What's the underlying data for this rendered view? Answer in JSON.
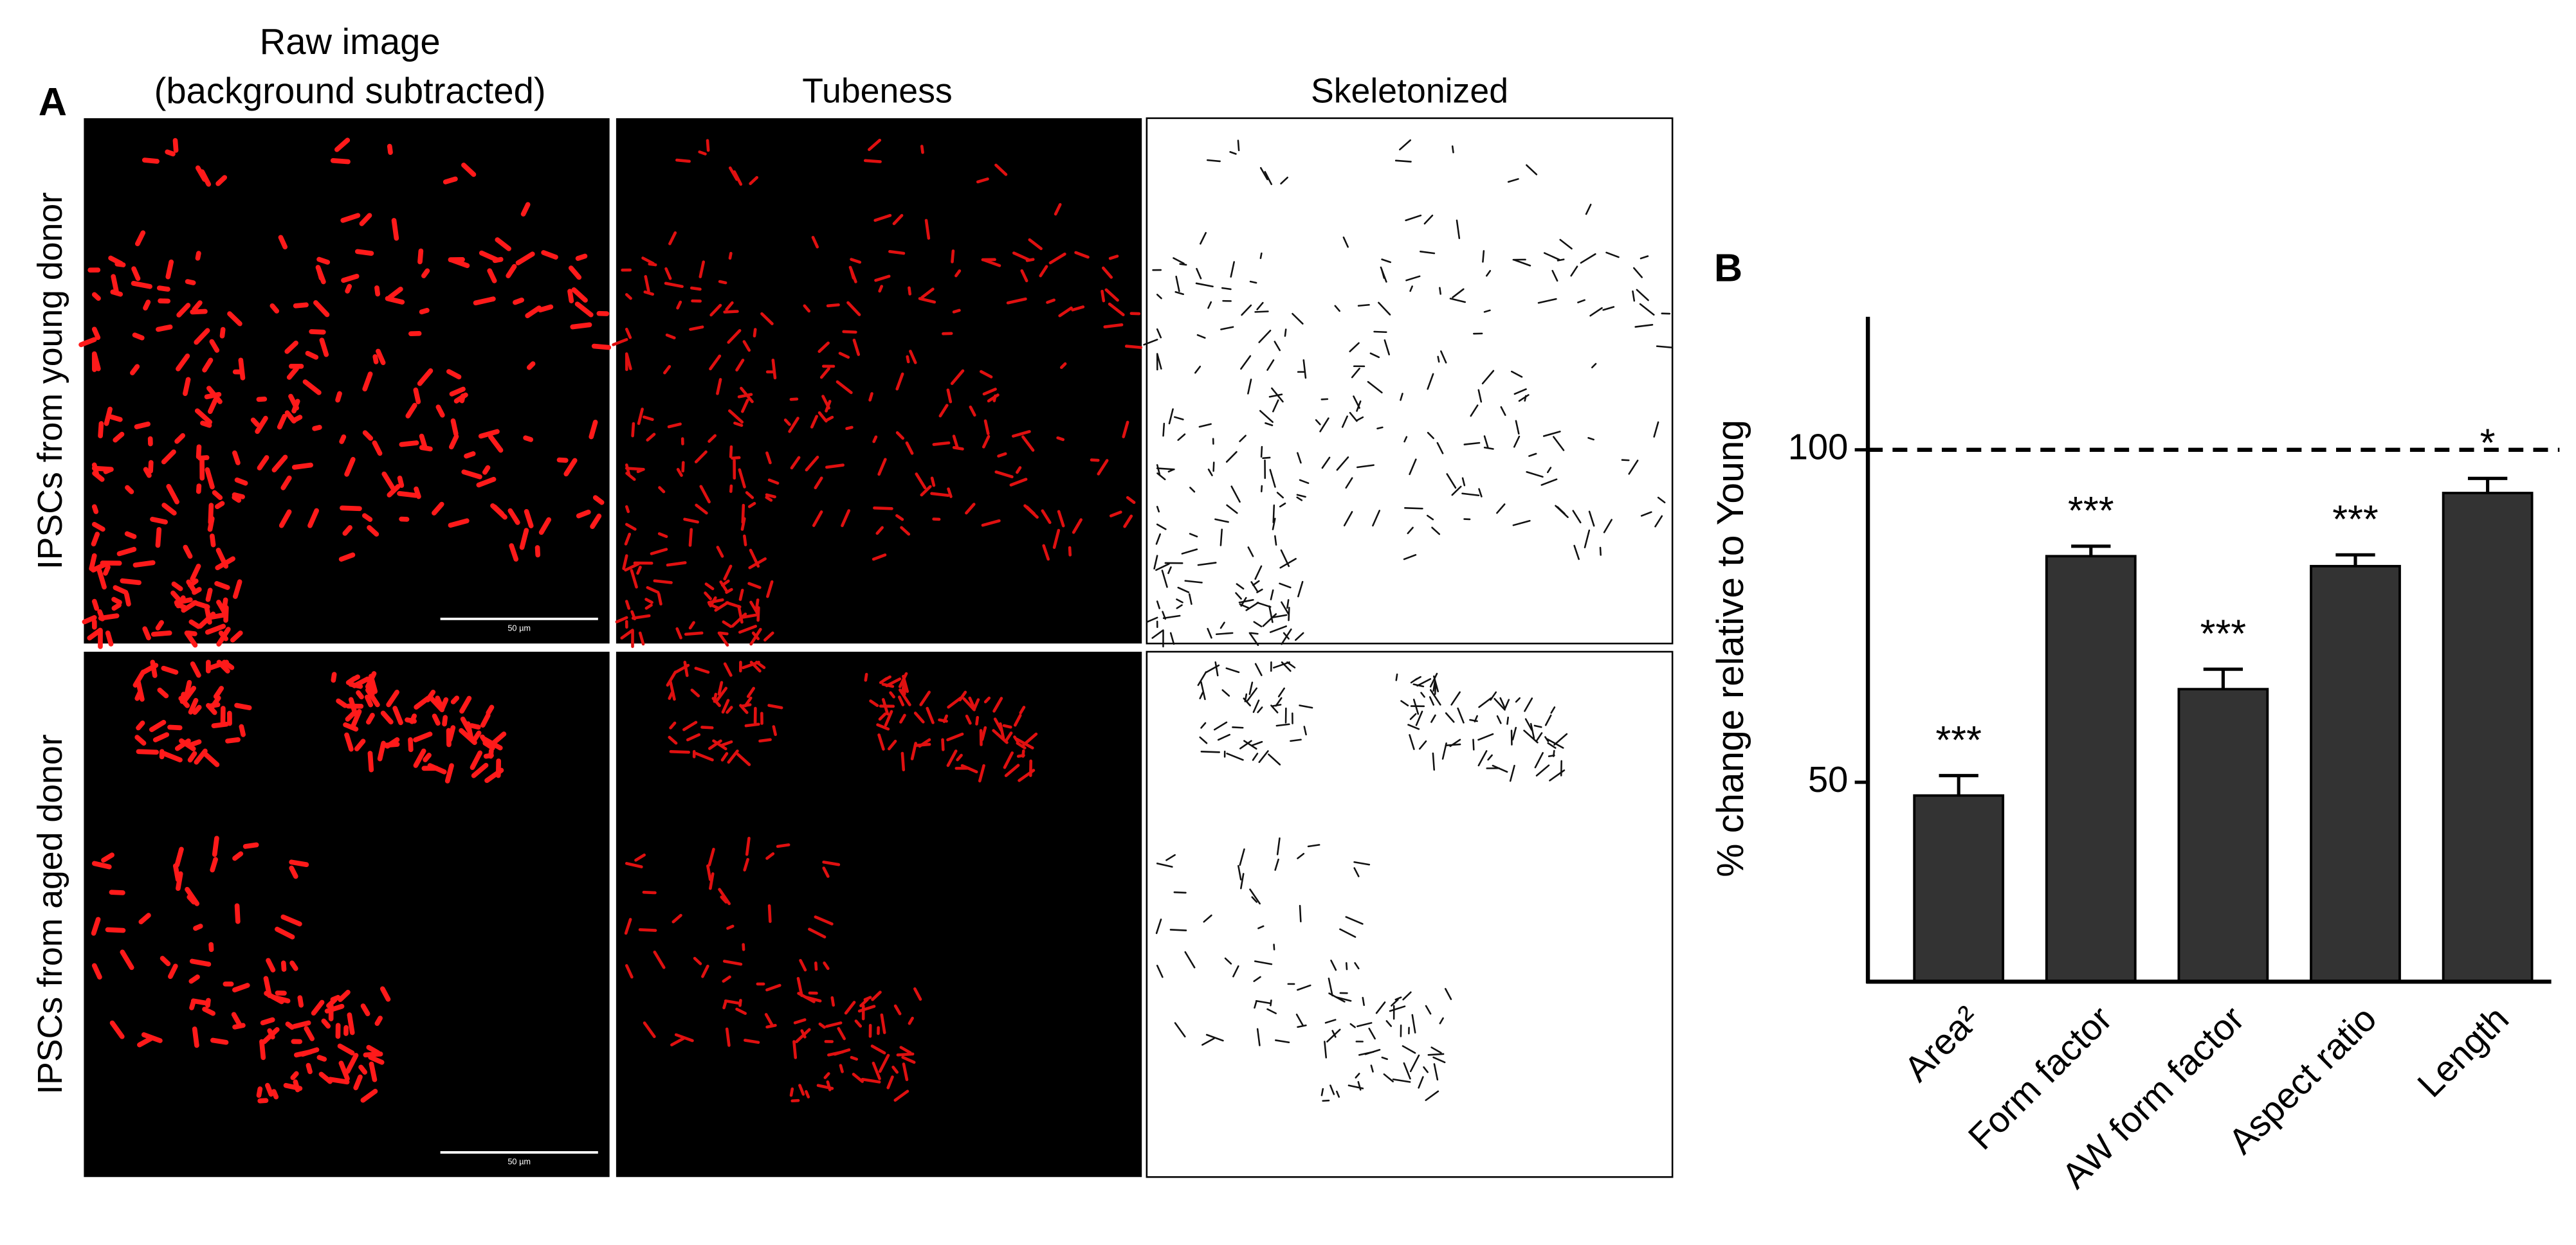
{
  "panel_a": {
    "label": "A",
    "column_headers": [
      [
        "Raw image",
        "(background subtracted)"
      ],
      [
        "Tubeness"
      ],
      [
        "Skeletonized"
      ]
    ],
    "row_labels": [
      "IPSCs from young donor",
      "IPSCs from aged donor"
    ],
    "scale_bars": [
      "50 µm",
      "50 µm"
    ]
  },
  "chart_data": {
    "type": "bar",
    "panel_label": "B",
    "y_label": "% change relative to Young",
    "categories": [
      "Area²",
      "Form factor",
      "AW form factor",
      "Aspect ratio",
      "Length"
    ],
    "values": [
      48,
      84,
      64,
      82.5,
      93.5
    ],
    "errors": [
      3,
      1.5,
      3,
      1.7,
      2.2
    ],
    "significance": [
      "***",
      "***",
      "***",
      "***",
      "*"
    ],
    "color": "#333333",
    "reference_line": 100,
    "ylim": [
      20,
      120
    ],
    "yticks": [
      50,
      100
    ]
  }
}
